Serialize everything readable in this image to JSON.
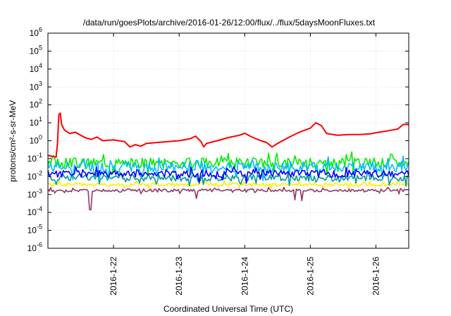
{
  "chart_data": {
    "type": "line",
    "title": "/data/run/goesPlots/archive/2016-01-26/12:00/flux/../flux/5daysMoonFluxes.txt",
    "xlabel": "Coordinated Universal Time (UTC)",
    "ylabel": "protons/cm²-s-sr-MeV",
    "y_scale": "log",
    "ylim": [
      1e-06,
      1000000.0
    ],
    "xlim": [
      "2016-01-21T00:00",
      "2016-01-26T12:00"
    ],
    "grid": true,
    "y_ticks": [
      {
        "value": 1e-06,
        "base": "10",
        "exp": "-6"
      },
      {
        "value": 1e-05,
        "base": "10",
        "exp": "-5"
      },
      {
        "value": 0.0001,
        "base": "10",
        "exp": "-4"
      },
      {
        "value": 0.001,
        "base": "10",
        "exp": "-3"
      },
      {
        "value": 0.01,
        "base": "10",
        "exp": "-2"
      },
      {
        "value": 0.1,
        "base": "10",
        "exp": "-1"
      },
      {
        "value": 1,
        "base": "10",
        "exp": "0"
      },
      {
        "value": 10,
        "base": "10",
        "exp": "1"
      },
      {
        "value": 100,
        "base": "10",
        "exp": "2"
      },
      {
        "value": 1000,
        "base": "10",
        "exp": "3"
      },
      {
        "value": 10000,
        "base": "10",
        "exp": "4"
      },
      {
        "value": 100000,
        "base": "10",
        "exp": "5"
      },
      {
        "value": 1000000,
        "base": "10",
        "exp": "6"
      }
    ],
    "x_ticks": [
      {
        "value": "2016-01-22T00:00",
        "label": "2016-1-22"
      },
      {
        "value": "2016-01-23T00:00",
        "label": "2016-1-23"
      },
      {
        "value": "2016-01-24T00:00",
        "label": "2016-1-24"
      },
      {
        "value": "2016-01-25T00:00",
        "label": "2016-1-25"
      },
      {
        "value": "2016-01-26T00:00",
        "label": "2016-1-26"
      }
    ],
    "series": [
      {
        "color": "#ff0000",
        "points": [
          [
            "2016-01-21T00:00",
            0.15
          ],
          [
            "2016-01-21T02:00",
            0.13
          ],
          [
            "2016-01-21T03:00",
            0.12
          ],
          [
            "2016-01-21T03:30",
            0.7
          ],
          [
            "2016-01-21T04:00",
            28
          ],
          [
            "2016-01-21T04:30",
            35
          ],
          [
            "2016-01-21T05:00",
            8
          ],
          [
            "2016-01-21T06:00",
            4
          ],
          [
            "2016-01-21T08:00",
            2.5
          ],
          [
            "2016-01-21T10:00",
            3
          ],
          [
            "2016-01-21T12:00",
            2
          ],
          [
            "2016-01-21T14:00",
            1.4
          ],
          [
            "2016-01-21T16:00",
            1.2
          ],
          [
            "2016-01-21T18:00",
            1.6
          ],
          [
            "2016-01-21T20:00",
            1.0
          ],
          [
            "2016-01-22T00:00",
            1.1
          ],
          [
            "2016-01-22T04:00",
            0.9
          ],
          [
            "2016-01-22T06:00",
            0.45
          ],
          [
            "2016-01-22T08:00",
            0.6
          ],
          [
            "2016-01-22T10:00",
            0.5
          ],
          [
            "2016-01-22T12:00",
            0.7
          ],
          [
            "2016-01-22T16:00",
            0.8
          ],
          [
            "2016-01-22T20:00",
            0.9
          ],
          [
            "2016-01-23T00:00",
            1.0
          ],
          [
            "2016-01-23T04:00",
            1.3
          ],
          [
            "2016-01-23T06:00",
            1.8
          ],
          [
            "2016-01-23T08:00",
            0.9
          ],
          [
            "2016-01-23T09:00",
            0.45
          ],
          [
            "2016-01-23T10:00",
            0.7
          ],
          [
            "2016-01-23T14:00",
            1.0
          ],
          [
            "2016-01-23T18:00",
            1.5
          ],
          [
            "2016-01-23T22:00",
            2.0
          ],
          [
            "2016-01-24T00:00",
            2.6
          ],
          [
            "2016-01-24T02:00",
            1.8
          ],
          [
            "2016-01-24T04:00",
            1.3
          ],
          [
            "2016-01-24T06:00",
            1.0
          ],
          [
            "2016-01-24T08:00",
            0.8
          ],
          [
            "2016-01-24T10:00",
            0.45
          ],
          [
            "2016-01-24T12:00",
            0.7
          ],
          [
            "2016-01-24T16:00",
            1.5
          ],
          [
            "2016-01-24T20:00",
            3.0
          ],
          [
            "2016-01-25T00:00",
            5
          ],
          [
            "2016-01-25T02:00",
            10
          ],
          [
            "2016-01-25T04:00",
            7
          ],
          [
            "2016-01-25T06:00",
            2.5
          ],
          [
            "2016-01-25T10:00",
            2.0
          ],
          [
            "2016-01-25T14:00",
            2.2
          ],
          [
            "2016-01-25T18:00",
            2.2
          ],
          [
            "2016-01-25T22:00",
            2.4
          ],
          [
            "2016-01-26T00:00",
            2.8
          ],
          [
            "2016-01-26T04:00",
            3.5
          ],
          [
            "2016-01-26T08:00",
            4.5
          ],
          [
            "2016-01-26T10:00",
            8
          ],
          [
            "2016-01-26T12:00",
            8
          ]
        ]
      },
      {
        "color": "#00ee00",
        "baseline": 0.06,
        "spread": 0.28,
        "seed": 3
      },
      {
        "color": "#00bbff",
        "baseline": 0.035,
        "spread": 0.3,
        "seed": 7
      },
      {
        "color": "#0000ff",
        "baseline": 0.015,
        "spread": 0.22,
        "seed": 11
      },
      {
        "color": "#009999",
        "baseline": 0.0085,
        "spread": 0.18,
        "seed": 17
      },
      {
        "color": "#ffee00",
        "baseline": 0.0036,
        "spread": 0.1,
        "seed": 23
      },
      {
        "color": "#993366",
        "baseline": 0.0017,
        "spread": 0.08,
        "seed": 29,
        "dips": [
          [
            "2016-01-21T15:30",
            0.00014
          ],
          [
            "2016-01-23T06:30",
            0.0006
          ],
          [
            "2016-01-24T18:30",
            0.0005
          ],
          [
            "2016-01-24T21:00",
            0.00045
          ]
        ]
      }
    ]
  }
}
